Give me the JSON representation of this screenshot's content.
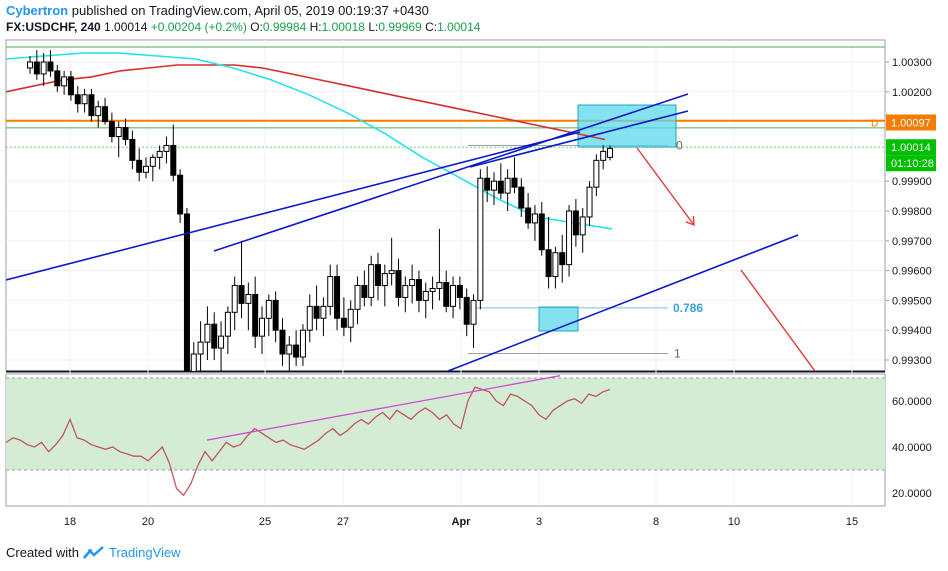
{
  "header": {
    "author": "Cybertron",
    "published": "published on TradingView.com, April 05, 2019 00:19:37 +0430",
    "symbol": "FX:USDCHF, 240",
    "last": "1.00014",
    "change": "+0.00204 (+0.2%)",
    "o_label": "O:",
    "o_val": "0.99984",
    "h_label": "H:",
    "h_val": "1.00018",
    "l_label": "L:",
    "l_val": "0.99969",
    "c_label": "C:",
    "c_val": "1.00014"
  },
  "footer": {
    "created_with": "Created with",
    "brand": "TradingView"
  },
  "colors": {
    "up_candle": "#ffffff",
    "down_candle": "#000000",
    "ma_red": "#d32f2f",
    "ma_cyan": "#26e3e8",
    "trendline": "#0d19c9",
    "orange_level": "#f57c00",
    "green_level": "#4caf50",
    "rsi_line": "#c2565f",
    "rsi_band": "#d4ecd4",
    "projection_arrow": "#e53935",
    "divergence_line": "#d048d4",
    "fib_label": "#3aa0d6",
    "price_badge_green": "#00c000",
    "price_badge_orange": "#f57c00"
  },
  "chart_data": {
    "type": "candlestick",
    "title": "",
    "xlabel": "",
    "ylabel": "",
    "x_tick_labels": [
      "18",
      "20",
      "25",
      "27",
      "Apr",
      "3",
      "8",
      "10",
      "15"
    ],
    "y_tick_labels": [
      "1.00300",
      "1.00200",
      "1.00097",
      "1.00014",
      "0.99900",
      "0.99800",
      "0.99700",
      "0.99600",
      "0.99500",
      "0.99400",
      "0.99300"
    ],
    "ylim": [
      0.993,
      1.0035
    ],
    "price_badges": [
      {
        "label": "1.00097",
        "value": 1.00097,
        "color": "orange"
      },
      {
        "label": "1.00014",
        "value": 1.00014,
        "color": "green"
      },
      {
        "label": "01:10:28",
        "value": null,
        "color": "green"
      }
    ],
    "fib_labels": [
      {
        "label": "0",
        "value": 1.0002
      },
      {
        "label": "0.786",
        "value": 0.99475
      },
      {
        "label": "1",
        "value": 0.99322
      }
    ],
    "level_marker": "D",
    "horizontal_levels": [
      1.00348,
      1.00103,
      1.00079,
      1.00014
    ],
    "candles": [
      {
        "o": 1.0028,
        "h": 1.0032,
        "l": 1.0026,
        "c": 1.003
      },
      {
        "o": 1.003,
        "h": 1.0034,
        "l": 1.0024,
        "c": 1.0026
      },
      {
        "o": 1.0026,
        "h": 1.0033,
        "l": 1.0022,
        "c": 1.003
      },
      {
        "o": 1.003,
        "h": 1.0034,
        "l": 1.0025,
        "c": 1.0027
      },
      {
        "o": 1.0027,
        "h": 1.0029,
        "l": 1.002,
        "c": 1.0022
      },
      {
        "o": 1.0022,
        "h": 1.0027,
        "l": 1.0019,
        "c": 1.0025
      },
      {
        "o": 1.0025,
        "h": 1.0027,
        "l": 1.0017,
        "c": 1.0019
      },
      {
        "o": 1.0019,
        "h": 1.0022,
        "l": 1.0013,
        "c": 1.0016
      },
      {
        "o": 1.0016,
        "h": 1.0021,
        "l": 1.0013,
        "c": 1.0019
      },
      {
        "o": 1.0019,
        "h": 1.0021,
        "l": 1.001,
        "c": 1.0012
      },
      {
        "o": 1.0012,
        "h": 1.0017,
        "l": 1.0008,
        "c": 1.0015
      },
      {
        "o": 1.0015,
        "h": 1.0018,
        "l": 1.0009,
        "c": 1.001
      },
      {
        "o": 1.001,
        "h": 1.0013,
        "l": 1.0003,
        "c": 1.0005
      },
      {
        "o": 1.0005,
        "h": 1.001,
        "l": 0.9998,
        "c": 1.0008
      },
      {
        "o": 1.0008,
        "h": 1.0011,
        "l": 1.0002,
        "c": 1.0004
      },
      {
        "o": 1.0004,
        "h": 1.0007,
        "l": 0.9994,
        "c": 0.9997
      },
      {
        "o": 0.9997,
        "h": 1.0001,
        "l": 0.999,
        "c": 0.9993
      },
      {
        "o": 0.9993,
        "h": 0.9998,
        "l": 0.9991,
        "c": 0.9995
      },
      {
        "o": 0.9995,
        "h": 0.9999,
        "l": 0.999,
        "c": 0.9998
      },
      {
        "o": 0.9998,
        "h": 1.0002,
        "l": 0.9994,
        "c": 1.0
      },
      {
        "o": 1.0,
        "h": 1.0005,
        "l": 0.9996,
        "c": 1.0002
      },
      {
        "o": 1.0002,
        "h": 1.0009,
        "l": 0.999,
        "c": 0.9992
      },
      {
        "o": 0.9992,
        "h": 0.9994,
        "l": 0.9976,
        "c": 0.9979
      },
      {
        "o": 0.9979,
        "h": 0.9981,
        "l": 0.992,
        "c": 0.9925
      },
      {
        "o": 0.9925,
        "h": 0.9936,
        "l": 0.9918,
        "c": 0.9932
      },
      {
        "o": 0.9932,
        "h": 0.9943,
        "l": 0.9925,
        "c": 0.9936
      },
      {
        "o": 0.9936,
        "h": 0.9948,
        "l": 0.993,
        "c": 0.9942
      },
      {
        "o": 0.9942,
        "h": 0.9946,
        "l": 0.993,
        "c": 0.9934
      },
      {
        "o": 0.9934,
        "h": 0.9943,
        "l": 0.9926,
        "c": 0.9938
      },
      {
        "o": 0.9938,
        "h": 0.9948,
        "l": 0.9932,
        "c": 0.9946
      },
      {
        "o": 0.9946,
        "h": 0.9958,
        "l": 0.994,
        "c": 0.9955
      },
      {
        "o": 0.9955,
        "h": 0.997,
        "l": 0.9944,
        "c": 0.9949
      },
      {
        "o": 0.9949,
        "h": 0.9956,
        "l": 0.994,
        "c": 0.9952
      },
      {
        "o": 0.9952,
        "h": 0.9958,
        "l": 0.9934,
        "c": 0.9938
      },
      {
        "o": 0.9938,
        "h": 0.9948,
        "l": 0.9932,
        "c": 0.9944
      },
      {
        "o": 0.9944,
        "h": 0.9952,
        "l": 0.9938,
        "c": 0.995
      },
      {
        "o": 0.995,
        "h": 0.9953,
        "l": 0.9936,
        "c": 0.994
      },
      {
        "o": 0.994,
        "h": 0.9944,
        "l": 0.9928,
        "c": 0.9932
      },
      {
        "o": 0.9932,
        "h": 0.9938,
        "l": 0.9926,
        "c": 0.9935
      },
      {
        "o": 0.9935,
        "h": 0.994,
        "l": 0.9928,
        "c": 0.9931
      },
      {
        "o": 0.9931,
        "h": 0.9942,
        "l": 0.9928,
        "c": 0.994
      },
      {
        "o": 0.994,
        "h": 0.9952,
        "l": 0.9936,
        "c": 0.9948
      },
      {
        "o": 0.9948,
        "h": 0.9955,
        "l": 0.994,
        "c": 0.9944
      },
      {
        "o": 0.9944,
        "h": 0.9951,
        "l": 0.9938,
        "c": 0.9948
      },
      {
        "o": 0.9948,
        "h": 0.9962,
        "l": 0.9945,
        "c": 0.9958
      },
      {
        "o": 0.9958,
        "h": 0.9962,
        "l": 0.994,
        "c": 0.9944
      },
      {
        "o": 0.9944,
        "h": 0.9951,
        "l": 0.9938,
        "c": 0.9941
      },
      {
        "o": 0.9941,
        "h": 0.995,
        "l": 0.9936,
        "c": 0.9947
      },
      {
        "o": 0.9947,
        "h": 0.9958,
        "l": 0.9942,
        "c": 0.9955
      },
      {
        "o": 0.9955,
        "h": 0.996,
        "l": 0.9948,
        "c": 0.9951
      },
      {
        "o": 0.9951,
        "h": 0.9965,
        "l": 0.9948,
        "c": 0.9962
      },
      {
        "o": 0.9962,
        "h": 0.9966,
        "l": 0.995,
        "c": 0.9955
      },
      {
        "o": 0.9955,
        "h": 0.9962,
        "l": 0.9948,
        "c": 0.9959
      },
      {
        "o": 0.9959,
        "h": 0.9971,
        "l": 0.9955,
        "c": 0.996
      },
      {
        "o": 0.996,
        "h": 0.9964,
        "l": 0.9948,
        "c": 0.9951
      },
      {
        "o": 0.9951,
        "h": 0.9958,
        "l": 0.9946,
        "c": 0.9955
      },
      {
        "o": 0.9955,
        "h": 0.9962,
        "l": 0.9949,
        "c": 0.9957
      },
      {
        "o": 0.9957,
        "h": 0.996,
        "l": 0.9946,
        "c": 0.995
      },
      {
        "o": 0.995,
        "h": 0.9956,
        "l": 0.9944,
        "c": 0.9953
      },
      {
        "o": 0.9953,
        "h": 0.9958,
        "l": 0.9947,
        "c": 0.9954
      },
      {
        "o": 0.9954,
        "h": 0.9974,
        "l": 0.995,
        "c": 0.9956
      },
      {
        "o": 0.9956,
        "h": 0.996,
        "l": 0.9946,
        "c": 0.9948
      },
      {
        "o": 0.9948,
        "h": 0.9958,
        "l": 0.9944,
        "c": 0.9955
      },
      {
        "o": 0.9955,
        "h": 0.9958,
        "l": 0.9947,
        "c": 0.9951
      },
      {
        "o": 0.9951,
        "h": 0.9954,
        "l": 0.9938,
        "c": 0.9942
      },
      {
        "o": 0.9942,
        "h": 0.9952,
        "l": 0.9934,
        "c": 0.995
      },
      {
        "o": 0.995,
        "h": 0.9994,
        "l": 0.9947,
        "c": 0.9991
      },
      {
        "o": 0.9991,
        "h": 0.9995,
        "l": 0.9983,
        "c": 0.9987
      },
      {
        "o": 0.9987,
        "h": 0.9993,
        "l": 0.9982,
        "c": 0.999
      },
      {
        "o": 0.999,
        "h": 0.9996,
        "l": 0.9984,
        "c": 0.9986
      },
      {
        "o": 0.9986,
        "h": 0.9994,
        "l": 0.998,
        "c": 0.9991
      },
      {
        "o": 0.9991,
        "h": 0.9998,
        "l": 0.9986,
        "c": 0.9988
      },
      {
        "o": 0.9988,
        "h": 0.9991,
        "l": 0.9978,
        "c": 0.9981
      },
      {
        "o": 0.9981,
        "h": 0.9986,
        "l": 0.9974,
        "c": 0.9976
      },
      {
        "o": 0.9976,
        "h": 0.9982,
        "l": 0.997,
        "c": 0.9979
      },
      {
        "o": 0.9979,
        "h": 0.9983,
        "l": 0.9965,
        "c": 0.9967
      },
      {
        "o": 0.9967,
        "h": 0.9978,
        "l": 0.9954,
        "c": 0.9958
      },
      {
        "o": 0.9958,
        "h": 0.9968,
        "l": 0.9954,
        "c": 0.9966
      },
      {
        "o": 0.9966,
        "h": 0.9972,
        "l": 0.9956,
        "c": 0.9962
      },
      {
        "o": 0.9962,
        "h": 0.9982,
        "l": 0.9958,
        "c": 0.998
      },
      {
        "o": 0.998,
        "h": 0.9984,
        "l": 0.9968,
        "c": 0.9972
      },
      {
        "o": 0.9972,
        "h": 0.9981,
        "l": 0.9966,
        "c": 0.9978
      },
      {
        "o": 0.9978,
        "h": 0.999,
        "l": 0.9975,
        "c": 0.9988
      },
      {
        "o": 0.9988,
        "h": 0.9999,
        "l": 0.9985,
        "c": 0.9997
      },
      {
        "o": 0.9997,
        "h": 1.0002,
        "l": 0.9994,
        "c": 1.0
      },
      {
        "o": 0.9998,
        "h": 1.0002,
        "l": 0.9997,
        "c": 1.0001
      }
    ],
    "ma_red": [
      1.002,
      1.0022,
      1.0024,
      1.0025,
      1.0027,
      1.0028,
      1.0029,
      1.0029,
      1.0029,
      1.0028,
      1.0026,
      1.0024,
      1.0022,
      1.002,
      1.0018,
      1.0016,
      1.0014,
      1.0012,
      1.001,
      1.0008,
      1.0006,
      1.0004
    ],
    "ma_cyan": [
      1.0031,
      1.0032,
      1.0033,
      1.0033,
      1.0032,
      1.0031,
      1.0028,
      1.0024,
      1.0019,
      1.0013,
      1.0006,
      0.9998,
      0.9991,
      0.9984,
      0.9978,
      0.9976,
      0.9974
    ],
    "rsi": {
      "ylim": [
        10,
        70
      ],
      "y_tick_labels": [
        "60.0000",
        "40.0000",
        "20.0000"
      ],
      "band": [
        30,
        70
      ],
      "values": [
        42,
        44,
        43,
        41,
        40,
        42,
        38,
        41,
        45,
        52,
        44,
        43,
        41,
        40,
        39,
        40,
        38,
        37,
        36,
        36,
        34,
        37,
        40,
        33,
        22,
        19,
        24,
        32,
        38,
        34,
        38,
        42,
        40,
        41,
        45,
        48,
        46,
        44,
        42,
        43,
        41,
        40,
        39,
        41,
        43,
        46,
        48,
        45,
        47,
        50,
        52,
        50,
        53,
        55,
        52,
        56,
        54,
        52,
        55,
        57,
        55,
        52,
        54,
        50,
        48,
        60,
        66,
        65,
        64,
        60,
        58,
        63,
        62,
        60,
        58,
        54,
        52,
        56,
        58,
        60,
        61,
        59,
        63,
        62,
        64,
        65
      ]
    }
  }
}
